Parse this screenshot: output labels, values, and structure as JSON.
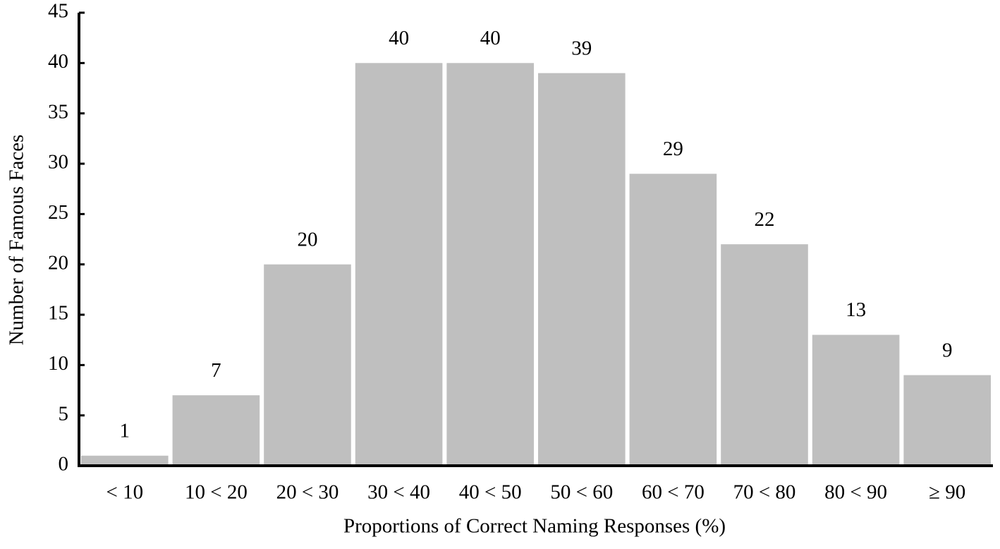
{
  "chart_data": {
    "type": "bar",
    "xlabel": "Proportions of Correct Naming Responses (%)",
    "ylabel": "Number of Famous Faces",
    "categories": [
      "< 10",
      "10 < 20",
      "20 < 30",
      "30 < 40",
      "40 < 50",
      "50 < 60",
      "60 < 70",
      "70 < 80",
      "80 < 90",
      "≥ 90"
    ],
    "values": [
      1,
      7,
      20,
      40,
      40,
      39,
      29,
      22,
      13,
      9
    ],
    "color": "#bfbfbf",
    "ylim": [
      0,
      45
    ],
    "yticks": [
      0,
      5,
      10,
      15,
      20,
      25,
      30,
      35,
      40,
      45
    ],
    "grid": false,
    "value_labels_shown": true
  }
}
